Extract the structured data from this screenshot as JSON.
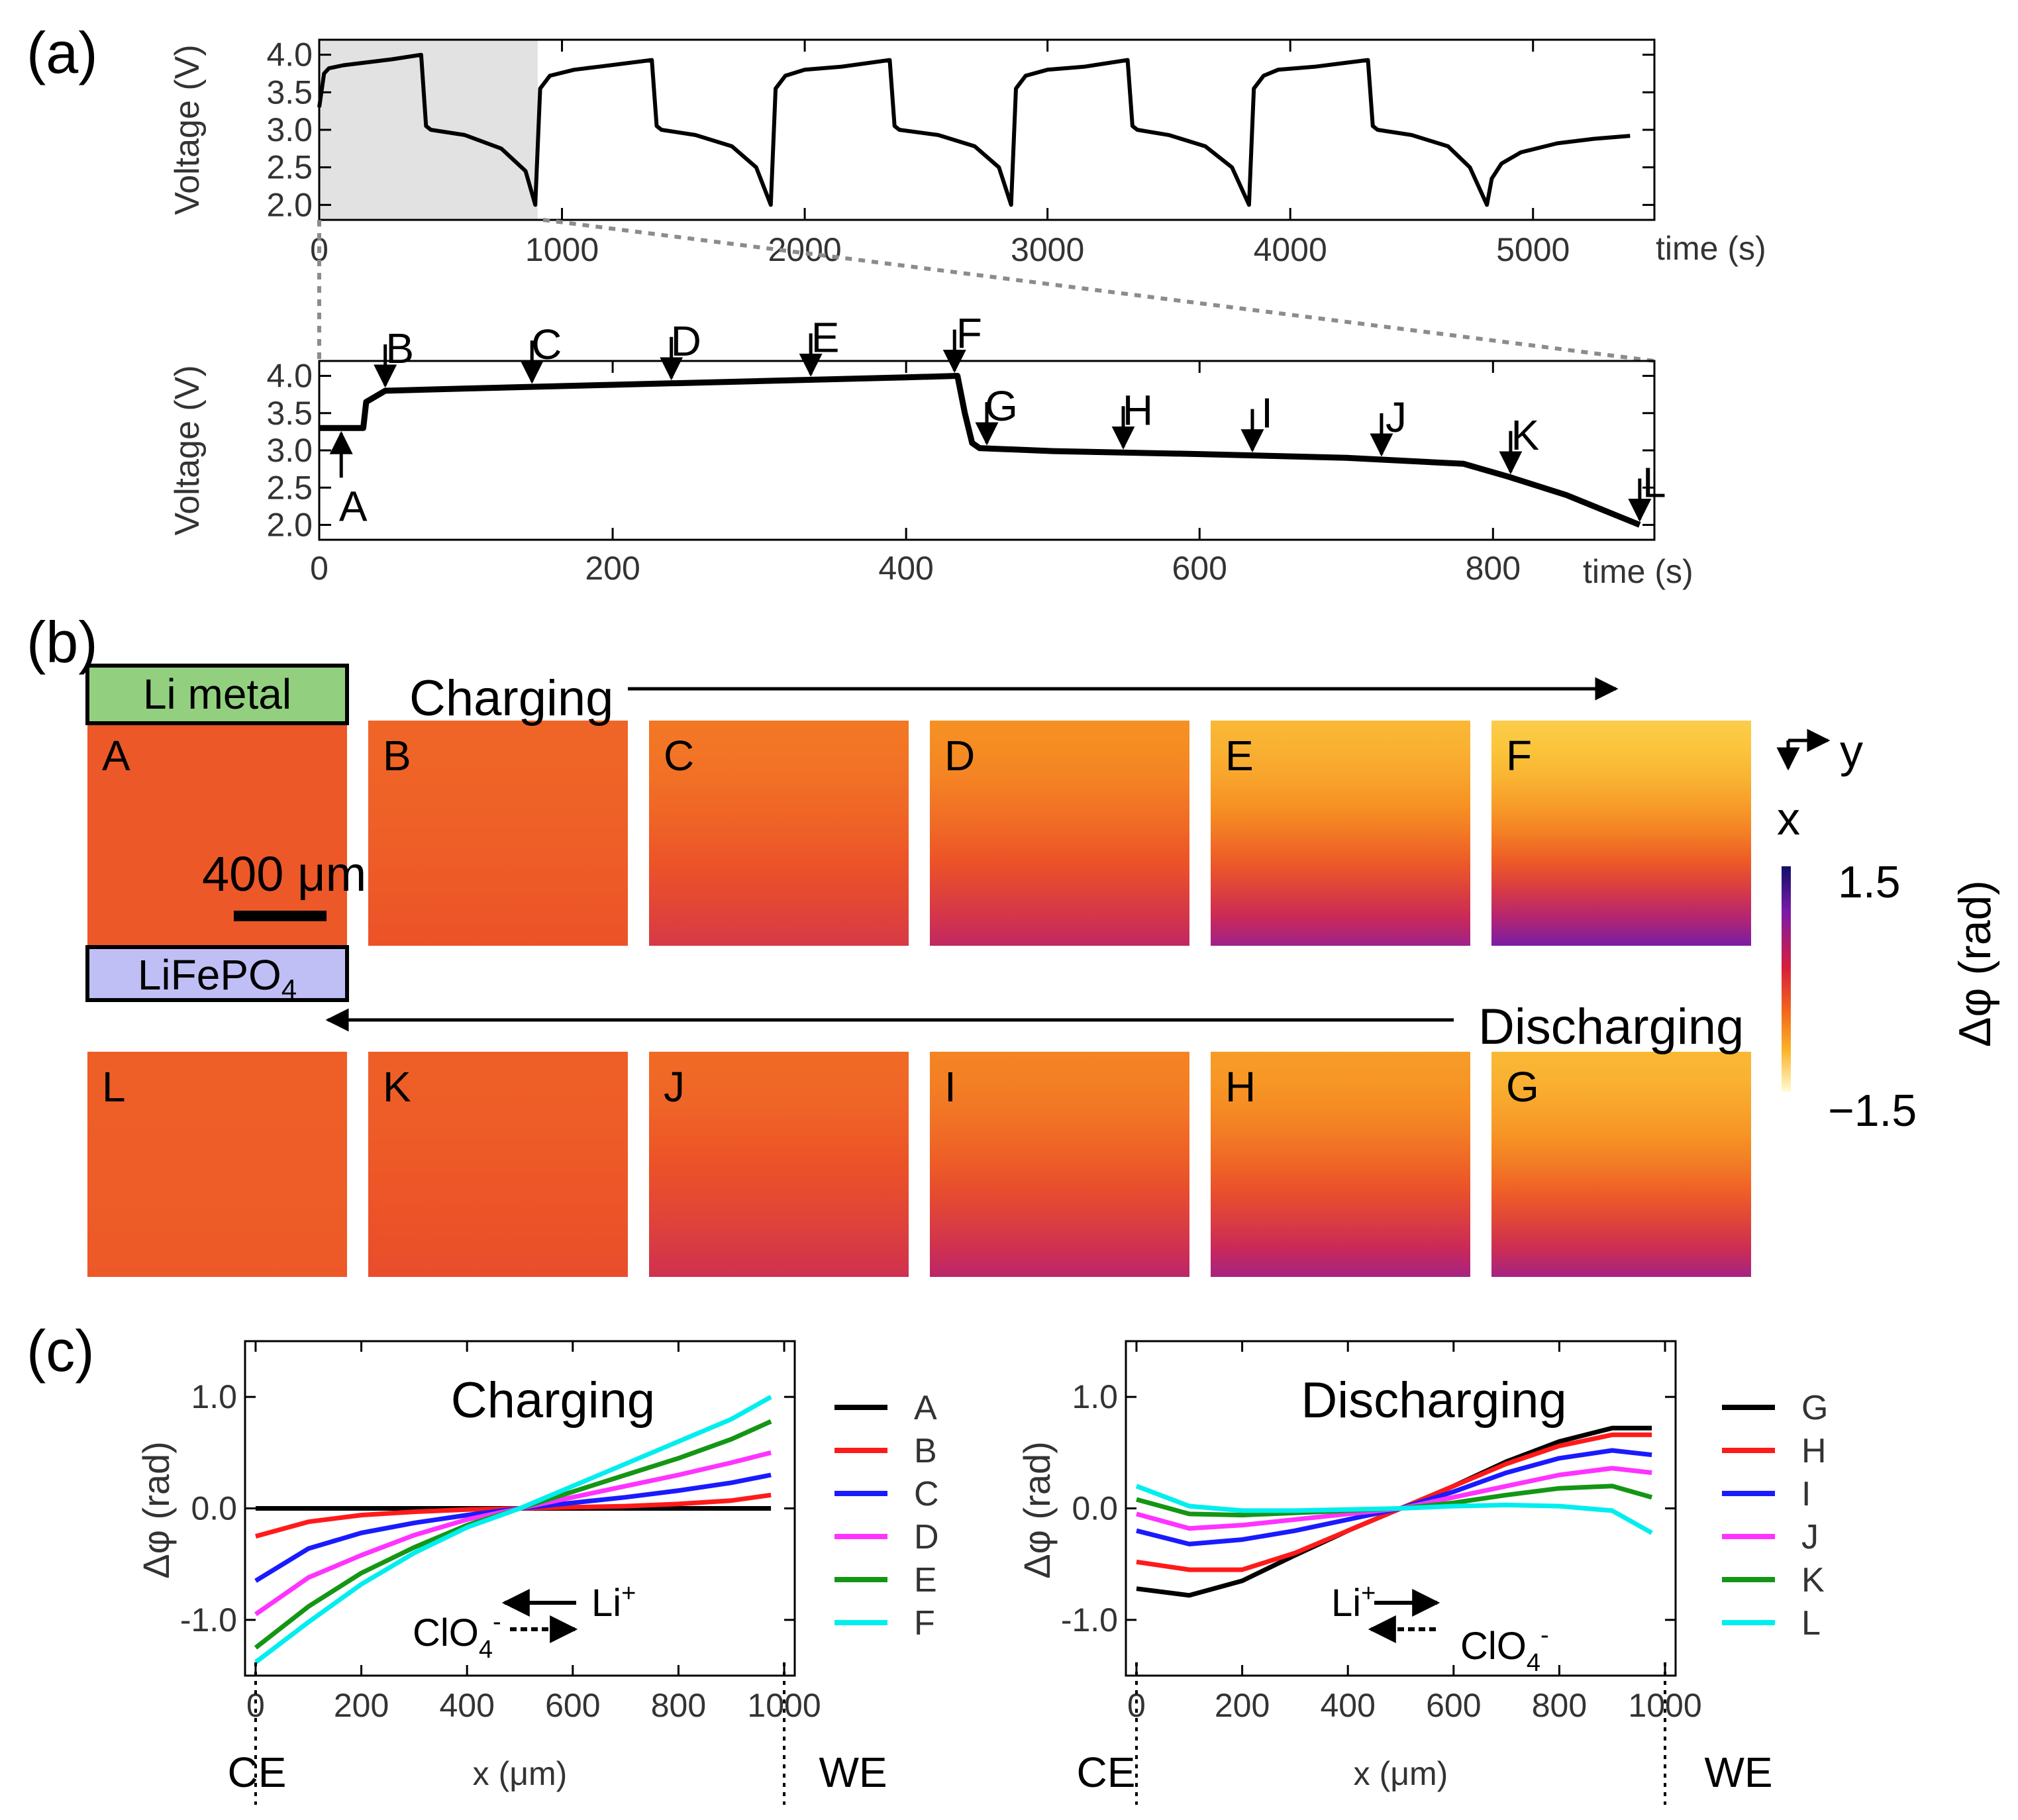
{
  "panel_labels": {
    "a": "(a)",
    "b": "(b)",
    "c": "(c)"
  },
  "colors": {
    "axis": "#000000",
    "shade": "#e2e2e2",
    "charge_box": "#92d07f",
    "discharge_box": "#bfbff5"
  },
  "chart_data": [
    {
      "id": "a-top",
      "type": "line",
      "ylabel": "Voltage (V)",
      "xlabel": "time (s)",
      "xlim": [
        0,
        5500
      ],
      "ylim": [
        1.8,
        4.2
      ],
      "xticks": [
        0,
        1000,
        2000,
        3000,
        4000,
        5000
      ],
      "yticks": [
        2.0,
        2.5,
        3.0,
        3.5,
        4.0
      ],
      "x": [
        0,
        20,
        40,
        100,
        200,
        300,
        420,
        440,
        460,
        600,
        750,
        850,
        890,
        910,
        950,
        1050,
        1150,
        1370,
        1390,
        1410,
        1550,
        1700,
        1800,
        1860,
        1880,
        1920,
        2000,
        2150,
        2350,
        2370,
        2390,
        2550,
        2700,
        2800,
        2850,
        2870,
        2910,
        3000,
        3150,
        3330,
        3350,
        3370,
        3500,
        3650,
        3760,
        3830,
        3850,
        3890,
        3950,
        4100,
        4320,
        4340,
        4360,
        4500,
        4650,
        4740,
        4810,
        4830,
        4870,
        4950,
        5100,
        5250,
        5400
      ],
      "values": [
        3.3,
        3.75,
        3.82,
        3.86,
        3.9,
        3.94,
        4.0,
        3.05,
        3.0,
        2.93,
        2.75,
        2.45,
        2.0,
        3.55,
        3.72,
        3.8,
        3.84,
        3.93,
        3.05,
        3.0,
        2.93,
        2.78,
        2.5,
        2.0,
        3.55,
        3.72,
        3.8,
        3.84,
        3.93,
        3.05,
        3.0,
        2.93,
        2.78,
        2.5,
        2.0,
        3.55,
        3.72,
        3.8,
        3.84,
        3.93,
        3.05,
        3.0,
        2.93,
        2.78,
        2.5,
        2.0,
        3.55,
        3.72,
        3.8,
        3.84,
        3.93,
        3.05,
        3.0,
        2.93,
        2.78,
        2.5,
        2.0,
        2.35,
        2.55,
        2.7,
        2.82,
        2.88,
        2.92
      ],
      "shaded_region": [
        0,
        900
      ]
    },
    {
      "id": "a-bottom",
      "type": "line",
      "ylabel": "Voltage (V)",
      "xlabel": "time (s)",
      "xlim": [
        0,
        910
      ],
      "ylim": [
        1.8,
        4.2
      ],
      "xticks": [
        0,
        200,
        400,
        600,
        800
      ],
      "yticks": [
        2.0,
        2.5,
        3.0,
        3.5,
        4.0
      ],
      "x": [
        0,
        30,
        32,
        45,
        100,
        200,
        300,
        400,
        435,
        440,
        445,
        450,
        500,
        600,
        700,
        780,
        810,
        850,
        900
      ],
      "values": [
        3.3,
        3.3,
        3.65,
        3.8,
        3.83,
        3.88,
        3.93,
        3.98,
        4.0,
        3.5,
        3.1,
        3.03,
        2.99,
        2.95,
        2.9,
        2.82,
        2.65,
        2.4,
        2.0
      ],
      "markers": [
        {
          "label": "A",
          "t": 15,
          "dir": "up"
        },
        {
          "label": "B",
          "t": 45,
          "dir": "down"
        },
        {
          "label": "C",
          "t": 145,
          "dir": "down"
        },
        {
          "label": "D",
          "t": 240,
          "dir": "down"
        },
        {
          "label": "E",
          "t": 335,
          "dir": "down"
        },
        {
          "label": "F",
          "t": 433,
          "dir": "down"
        },
        {
          "label": "G",
          "t": 455,
          "dir": "down"
        },
        {
          "label": "H",
          "t": 548,
          "dir": "down"
        },
        {
          "label": "I",
          "t": 636,
          "dir": "down"
        },
        {
          "label": "J",
          "t": 724,
          "dir": "down"
        },
        {
          "label": "K",
          "t": 812,
          "dir": "down"
        },
        {
          "label": "L",
          "t": 900,
          "dir": "down"
        }
      ]
    },
    {
      "id": "b-maps",
      "type": "heatmap",
      "scale_bar": "400 μm",
      "charging_label": "Charging",
      "discharging_label": "Discharging",
      "top_box": "Li metal",
      "bottom_box": "LiFePO",
      "bottom_box_sub": "4",
      "axis_y": "y",
      "axis_x": "x",
      "colorbar": {
        "label": "Δφ (rad)",
        "max": "1.5",
        "min": "−1.5",
        "range": [
          -1.5,
          1.5
        ]
      },
      "top_row": [
        {
          "label": "A",
          "top": -0.05,
          "bottom": -0.05
        },
        {
          "label": "B",
          "top": -0.15,
          "bottom": 0.0
        },
        {
          "label": "C",
          "top": -0.3,
          "bottom": 0.3
        },
        {
          "label": "D",
          "top": -0.5,
          "bottom": 0.55
        },
        {
          "label": "E",
          "top": -0.85,
          "bottom": 0.8
        },
        {
          "label": "F",
          "top": -1.05,
          "bottom": 1.05
        }
      ],
      "bottom_row": [
        {
          "label": "L",
          "top": -0.1,
          "bottom": -0.05
        },
        {
          "label": "K",
          "top": -0.1,
          "bottom": 0.05
        },
        {
          "label": "J",
          "top": -0.2,
          "bottom": 0.4
        },
        {
          "label": "I",
          "top": -0.4,
          "bottom": 0.6
        },
        {
          "label": "H",
          "top": -0.6,
          "bottom": 0.75
        },
        {
          "label": "G",
          "top": -0.85,
          "bottom": 0.75
        }
      ]
    },
    {
      "id": "c-left",
      "type": "line",
      "title": "Charging",
      "ylabel": "Δφ (rad)",
      "xlabel": "x (μm)",
      "xlim": [
        -20,
        1020
      ],
      "ylim": [
        -1.5,
        1.5
      ],
      "xticks": [
        0,
        200,
        400,
        600,
        800,
        1000
      ],
      "yticks": [
        -1.0,
        0.0,
        1.0
      ],
      "edge_left": "CE",
      "edge_right": "WE",
      "ion_top": "Li",
      "ion_top_sup": "+",
      "ion_bottom": "ClO",
      "ion_bottom_sub": "4",
      "ion_bottom_sup": "-",
      "x": [
        0,
        100,
        200,
        300,
        400,
        500,
        600,
        700,
        800,
        900,
        975
      ],
      "series": [
        {
          "name": "A",
          "color": "#000000",
          "values": [
            0.0,
            0.0,
            0.0,
            0.0,
            0.0,
            0.0,
            0.0,
            0.0,
            0.0,
            0.0,
            0.0
          ]
        },
        {
          "name": "B",
          "color": "#ff1a1a",
          "values": [
            -0.25,
            -0.12,
            -0.06,
            -0.03,
            -0.01,
            0.0,
            0.01,
            0.02,
            0.04,
            0.07,
            0.12
          ]
        },
        {
          "name": "C",
          "color": "#1a1aff",
          "values": [
            -0.65,
            -0.36,
            -0.22,
            -0.13,
            -0.06,
            0.0,
            0.05,
            0.1,
            0.16,
            0.23,
            0.3
          ]
        },
        {
          "name": "D",
          "color": "#ff33ff",
          "values": [
            -0.95,
            -0.62,
            -0.42,
            -0.24,
            -0.1,
            0.0,
            0.1,
            0.2,
            0.3,
            0.41,
            0.5
          ]
        },
        {
          "name": "E",
          "color": "#149614",
          "values": [
            -1.25,
            -0.88,
            -0.58,
            -0.35,
            -0.15,
            0.0,
            0.15,
            0.3,
            0.45,
            0.62,
            0.78
          ]
        },
        {
          "name": "F",
          "color": "#00eeee",
          "values": [
            -1.38,
            -1.02,
            -0.68,
            -0.4,
            -0.17,
            0.0,
            0.2,
            0.4,
            0.6,
            0.8,
            1.0
          ]
        }
      ]
    },
    {
      "id": "c-right",
      "type": "line",
      "title": "Discharging",
      "ylabel": "Δφ (rad)",
      "xlabel": "x (μm)",
      "xlim": [
        -20,
        1020
      ],
      "ylim": [
        -1.5,
        1.5
      ],
      "xticks": [
        0,
        200,
        400,
        600,
        800,
        1000
      ],
      "yticks": [
        -1.0,
        0.0,
        1.0
      ],
      "edge_left": "CE",
      "edge_right": "WE",
      "ion_top": "Li",
      "ion_top_sup": "+",
      "ion_bottom": "ClO",
      "ion_bottom_sub": "4",
      "ion_bottom_sup": "-",
      "x": [
        0,
        100,
        200,
        300,
        400,
        500,
        600,
        700,
        800,
        900,
        975
      ],
      "series": [
        {
          "name": "G",
          "color": "#000000",
          "values": [
            -0.72,
            -0.78,
            -0.65,
            -0.42,
            -0.2,
            0.0,
            0.2,
            0.42,
            0.6,
            0.72,
            0.72
          ]
        },
        {
          "name": "H",
          "color": "#ff1a1a",
          "values": [
            -0.48,
            -0.55,
            -0.55,
            -0.4,
            -0.2,
            0.0,
            0.2,
            0.4,
            0.56,
            0.66,
            0.66
          ]
        },
        {
          "name": "I",
          "color": "#1a1aff",
          "values": [
            -0.2,
            -0.32,
            -0.28,
            -0.2,
            -0.1,
            0.0,
            0.15,
            0.32,
            0.45,
            0.52,
            0.48
          ]
        },
        {
          "name": "J",
          "color": "#ff33ff",
          "values": [
            -0.05,
            -0.18,
            -0.15,
            -0.1,
            -0.05,
            0.0,
            0.1,
            0.2,
            0.3,
            0.36,
            0.32
          ]
        },
        {
          "name": "K",
          "color": "#149614",
          "values": [
            0.08,
            -0.05,
            -0.06,
            -0.04,
            -0.02,
            0.0,
            0.05,
            0.12,
            0.18,
            0.2,
            0.1
          ]
        },
        {
          "name": "L",
          "color": "#00eeee",
          "values": [
            0.2,
            0.02,
            -0.02,
            -0.02,
            -0.01,
            0.0,
            0.02,
            0.03,
            0.02,
            -0.02,
            -0.22
          ]
        }
      ]
    }
  ]
}
